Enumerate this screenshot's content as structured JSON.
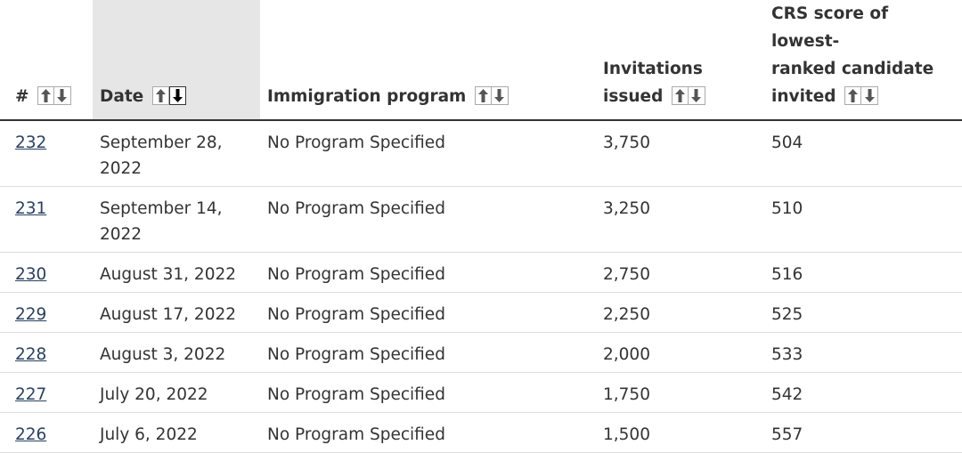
{
  "table": {
    "headers": {
      "number": "#",
      "date": "Date",
      "program": "Immigration program",
      "invitations_line1": "Invitations",
      "invitations_line2": "issued",
      "crs_line1": "CRS score of lowest-",
      "crs_line2": "ranked candidate",
      "crs_line3": "invited"
    },
    "sorted_column": "date",
    "sort_direction": "descending",
    "rows": [
      {
        "number": "232",
        "date": "September 28, 2022",
        "date_line1": "September 28,",
        "date_line2": "2022",
        "program": "No Program Specified",
        "invitations": "3,750",
        "crs": "504"
      },
      {
        "number": "231",
        "date": "September 14, 2022",
        "date_line1": "September 14,",
        "date_line2": "2022",
        "program": "No Program Specified",
        "invitations": "3,250",
        "crs": "510"
      },
      {
        "number": "230",
        "date": "August 31, 2022",
        "program": "No Program Specified",
        "invitations": "2,750",
        "crs": "516"
      },
      {
        "number": "229",
        "date": "August 17, 2022",
        "program": "No Program Specified",
        "invitations": "2,250",
        "crs": "525"
      },
      {
        "number": "228",
        "date": "August 3, 2022",
        "program": "No Program Specified",
        "invitations": "2,000",
        "crs": "533"
      },
      {
        "number": "227",
        "date": "July 20, 2022",
        "program": "No Program Specified",
        "invitations": "1,750",
        "crs": "542"
      },
      {
        "number": "226",
        "date": "July 6, 2022",
        "program": "No Program Specified",
        "invitations": "1,500",
        "crs": "557"
      }
    ]
  },
  "colors": {
    "link": "#284162",
    "text": "#333333",
    "sorted_header_bg": "#e6e6e6",
    "row_border": "#dddddd"
  },
  "icons": {
    "sort_up": "arrow-up-icon",
    "sort_down": "arrow-down-icon"
  }
}
